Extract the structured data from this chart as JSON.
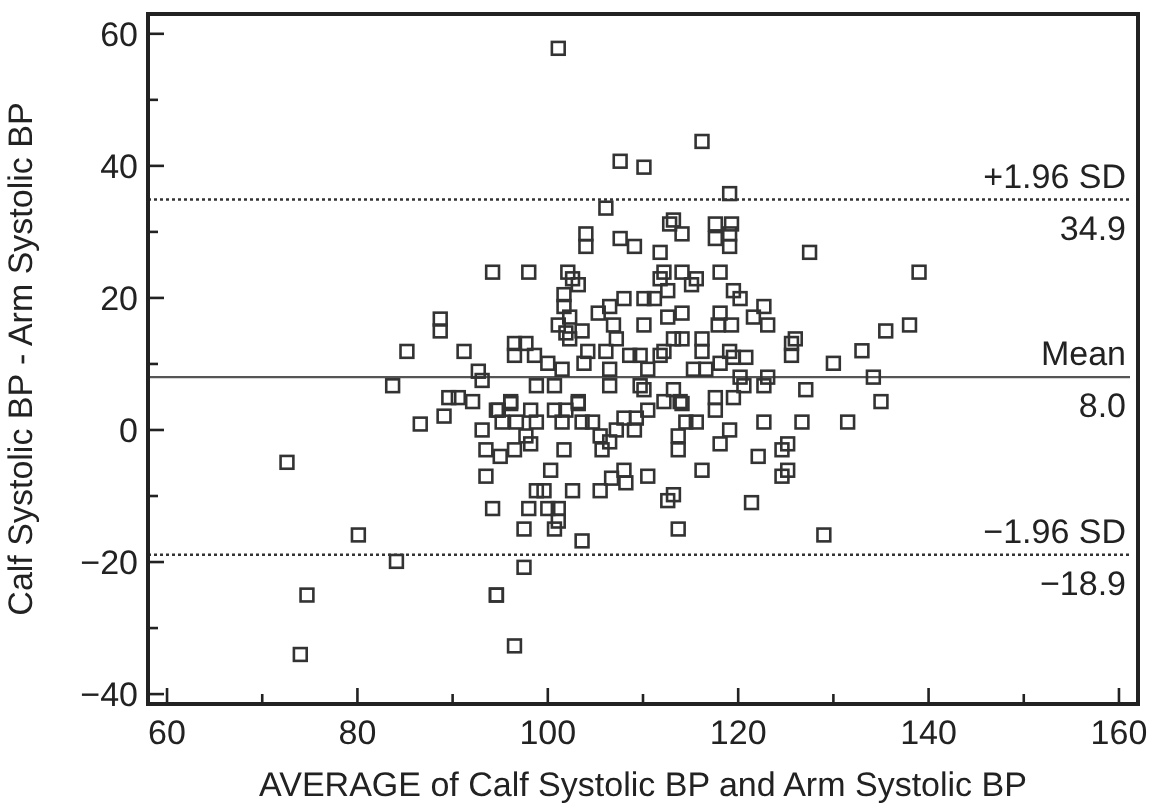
{
  "chart_data": {
    "type": "scatter",
    "xlabel": "AVERAGE of Calf Systolic BP and Arm Systolic BP",
    "ylabel": "Calf Systolic BP - Arm Systolic BP",
    "xlim": [
      58,
      162
    ],
    "ylim": [
      -41.5,
      63
    ],
    "xticks": [
      60,
      {
        "value": 70,
        "label": null
      },
      80,
      {
        "value": 90,
        "label": null
      },
      100,
      {
        "value": 110,
        "label": null
      },
      120,
      {
        "value": 130,
        "label": null
      },
      140,
      {
        "value": 150,
        "label": null
      },
      160
    ],
    "yticks": [
      -40,
      {
        "value": -30,
        "label": null
      },
      -20,
      {
        "value": -10,
        "label": null
      },
      0,
      {
        "value": 10,
        "label": null
      },
      20,
      {
        "value": 30,
        "label": null
      },
      40,
      {
        "value": 50,
        "label": null
      },
      60
    ],
    "grid": false,
    "marker": "square",
    "ref_lines": [
      {
        "axis": "y",
        "value": 34.9,
        "label": "+1.96 SD",
        "line_style": "dotted",
        "color": "#333333"
      },
      {
        "axis": "y",
        "value": 8.0,
        "label": "Mean",
        "line_style": "solid",
        "color": "#555555"
      },
      {
        "axis": "y",
        "value": -18.9,
        "label": "−1.96 SD",
        "line_style": "dotted",
        "color": "#333333"
      }
    ],
    "annotations": [
      {
        "text": "34.9",
        "y": 34.9
      },
      {
        "text": "8.0",
        "y": 8.0
      },
      {
        "text": "−18.9",
        "y": -18.9
      }
    ],
    "series": [
      {
        "color": "#333333",
        "x": [
          94.2,
          88.7,
          88.7,
          85.2,
          91.2,
          92.7,
          93.1,
          83.7,
          89.6,
          90.6,
          92.1,
          86.6,
          89.1,
          93.1,
          93.5,
          93.5,
          94.2,
          72.6,
          80.1,
          84.1,
          74.7,
          74.0,
          94.6,
          94.6,
          101.1,
          116.2,
          107.6,
          110.1,
          119.1,
          106.1,
          104.0,
          104.0,
          107.6,
          109.1,
          111.8,
          112.8,
          113.2,
          114.1,
          117.6,
          117.6,
          119.3,
          119.1,
          119.1,
          127.5,
          98.0,
          102.1,
          102.6,
          103.2,
          101.7,
          101.7,
          102.3,
          101.1,
          101.9,
          103.6,
          102.3,
          105.3,
          106.5,
          108.0,
          110.1,
          111.2,
          112.6,
          112.2,
          114.1,
          111.8,
          115.1,
          115.6,
          118.1,
          119.5,
          120.2,
          122.7,
          121.6,
          123.1,
          112.6,
          114.1,
          110.1,
          106.9,
          107.2,
          113.2,
          114.1,
          118.1,
          117.9,
          119.3,
          116.2,
          116.2,
          96.5,
          97.7,
          96.5,
          98.6,
          100.0,
          104.2,
          106.1,
          108.6,
          109.7,
          111.8,
          112.2,
          119.1,
          119.5,
          120.8,
          125.6,
          126.0,
          125.6,
          130.0,
          101.5,
          103.8,
          106.5,
          110.5,
          115.3,
          116.6,
          118.1,
          120.2,
          123.1,
          98.8,
          100.7,
          106.5,
          109.7,
          113.2,
          117.6,
          119.5,
          120.6,
          122.7,
          127.1,
          96.1,
          103.2,
          112.2,
          113.9,
          110.1,
          114.1,
          94.8,
          96.1,
          95.2,
          96.7,
          98.2,
          98.8,
          100.7,
          101.5,
          101.9,
          103.2,
          103.6,
          104.7,
          95.0,
          96.5,
          97.7,
          98.2,
          101.7,
          105.5,
          105.7,
          106.5,
          107.2,
          108.0,
          109.3,
          109.1,
          110.5,
          113.7,
          113.7,
          114.5,
          115.6,
          117.6,
          119.1,
          118.1,
          122.7,
          126.7,
          122.1,
          124.6,
          125.2,
          100.3,
          98.8,
          99.6,
          102.6,
          105.5,
          106.7,
          108.0,
          108.2,
          110.5,
          116.2,
          124.6,
          125.2,
          98.0,
          100.0,
          101.1,
          101.1,
          100.7,
          97.5,
          103.6,
          112.6,
          113.2,
          113.7,
          121.4,
          129.0,
          97.5,
          94.6,
          96.5,
          135.0,
          131.5,
          134.2,
          133.0,
          135.5,
          138.0,
          139.0
        ],
        "values": [
          23.9,
          16.8,
          15.0,
          11.9,
          11.9,
          8.9,
          7.5,
          6.7,
          4.9,
          4.9,
          4.3,
          0.9,
          2.1,
          0.0,
          -3.0,
          -7.0,
          -11.9,
          -4.9,
          -15.9,
          -19.9,
          -25.0,
          -34.0,
          -25.0,
          3.0,
          57.8,
          43.7,
          40.7,
          39.8,
          35.8,
          33.6,
          29.7,
          27.8,
          29.0,
          27.8,
          26.9,
          31.2,
          31.8,
          29.7,
          31.2,
          29.0,
          31.2,
          29.7,
          27.8,
          26.9,
          23.9,
          23.9,
          22.9,
          22.0,
          20.5,
          18.7,
          17.1,
          15.9,
          14.7,
          15.0,
          13.8,
          17.7,
          18.7,
          19.9,
          19.9,
          19.9,
          21.1,
          23.9,
          23.9,
          22.9,
          22.0,
          22.9,
          23.9,
          21.1,
          19.9,
          18.7,
          17.1,
          15.9,
          17.1,
          17.7,
          15.9,
          15.9,
          13.8,
          13.8,
          13.8,
          17.7,
          15.9,
          15.9,
          13.8,
          11.9,
          13.1,
          13.1,
          11.3,
          11.3,
          10.1,
          11.9,
          11.9,
          11.3,
          11.3,
          11.3,
          11.9,
          11.9,
          11.0,
          11.0,
          13.1,
          13.8,
          11.3,
          10.1,
          9.2,
          10.1,
          9.2,
          9.2,
          9.2,
          9.2,
          10.1,
          8.0,
          8.0,
          6.7,
          6.7,
          6.7,
          6.7,
          6.1,
          4.9,
          4.9,
          6.7,
          6.7,
          6.1,
          4.3,
          4.3,
          4.3,
          4.3,
          6.1,
          4.0,
          3.0,
          4.0,
          1.2,
          1.2,
          3.0,
          1.2,
          3.0,
          1.2,
          3.0,
          4.0,
          1.2,
          1.2,
          -4.0,
          -3.0,
          -0.9,
          -2.1,
          -3.0,
          -0.9,
          -3.0,
          -1.8,
          0.0,
          1.8,
          1.8,
          0.0,
          3.0,
          -0.9,
          -3.0,
          1.2,
          1.2,
          3.0,
          0.0,
          -2.1,
          1.2,
          1.2,
          -4.0,
          -3.0,
          -2.1,
          -6.1,
          -9.2,
          -9.2,
          -9.2,
          -9.2,
          -7.3,
          -6.1,
          -8.0,
          -7.0,
          -6.1,
          -7.0,
          -6.1,
          -11.9,
          -11.9,
          -11.9,
          -13.8,
          -15.0,
          -15.0,
          -16.8,
          -10.7,
          -9.8,
          -15.0,
          -11.0,
          -15.9,
          -20.8,
          -25.0,
          -32.7,
          4.3,
          1.2,
          8.0,
          12.0,
          15.0,
          15.9,
          23.9
        ]
      }
    ]
  }
}
